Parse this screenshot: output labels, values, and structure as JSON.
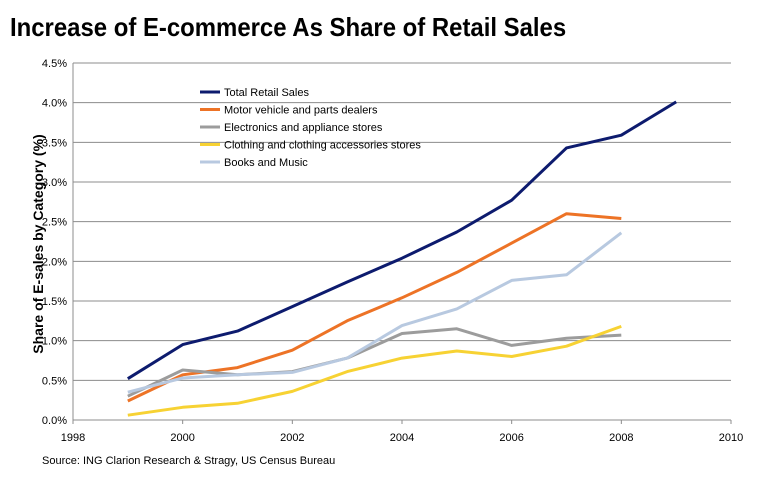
{
  "chart_data": {
    "type": "line",
    "title": "Increase of E-commerce As Share of Retail Sales",
    "ylabel": "Share of E-sales by Category (%)",
    "xlabel": "",
    "source": "Source: ING Clarion Research & Stragy, US Census Bureau",
    "xlim": [
      1998,
      2010
    ],
    "ylim": [
      0,
      4.5
    ],
    "x_ticks": [
      "1998",
      "2000",
      "2002",
      "2004",
      "2006",
      "2008",
      "2010"
    ],
    "y_ticks": [
      "0.0%",
      "0.5%",
      "1.0%",
      "1.5%",
      "2.0%",
      "2.5%",
      "3.0%",
      "3.5%",
      "4.0%",
      "4.5%"
    ],
    "grid": "horizontal",
    "legend_position": "top-left",
    "series": [
      {
        "name": "Total Retail Sales",
        "color": "#0d1b6e",
        "x": [
          1999,
          2000,
          2001,
          2002,
          2003,
          2004,
          2005,
          2006,
          2007,
          2008,
          2009
        ],
        "values": [
          0.52,
          0.95,
          1.12,
          1.43,
          1.74,
          2.04,
          2.37,
          2.77,
          3.43,
          3.59,
          4.01
        ]
      },
      {
        "name": "Motor vehicle and parts dealers",
        "color": "#ed7326",
        "x": [
          1999,
          2000,
          2001,
          2002,
          2003,
          2004,
          2005,
          2006,
          2007,
          2008
        ],
        "values": [
          0.24,
          0.57,
          0.66,
          0.88,
          1.25,
          1.54,
          1.86,
          2.23,
          2.6,
          2.54
        ]
      },
      {
        "name": "Electronics and appliance stores",
        "color": "#9c9c9c",
        "x": [
          1999,
          2000,
          2001,
          2002,
          2003,
          2004,
          2005,
          2006,
          2007,
          2008
        ],
        "values": [
          0.3,
          0.63,
          0.57,
          0.61,
          0.78,
          1.09,
          1.15,
          0.94,
          1.03,
          1.07
        ]
      },
      {
        "name": "Clothing and clothing accessories stores",
        "color": "#f7d233",
        "x": [
          1999,
          2000,
          2001,
          2002,
          2003,
          2004,
          2005,
          2006,
          2007,
          2008
        ],
        "values": [
          0.06,
          0.16,
          0.21,
          0.36,
          0.61,
          0.78,
          0.87,
          0.8,
          0.93,
          1.18
        ]
      },
      {
        "name": "Books and Music",
        "color": "#b8c9e0",
        "x": [
          1999,
          2000,
          2001,
          2002,
          2003,
          2004,
          2005,
          2006,
          2007,
          2008
        ],
        "values": [
          0.35,
          0.53,
          0.57,
          0.6,
          0.78,
          1.19,
          1.4,
          1.76,
          1.83,
          2.36
        ]
      }
    ]
  }
}
